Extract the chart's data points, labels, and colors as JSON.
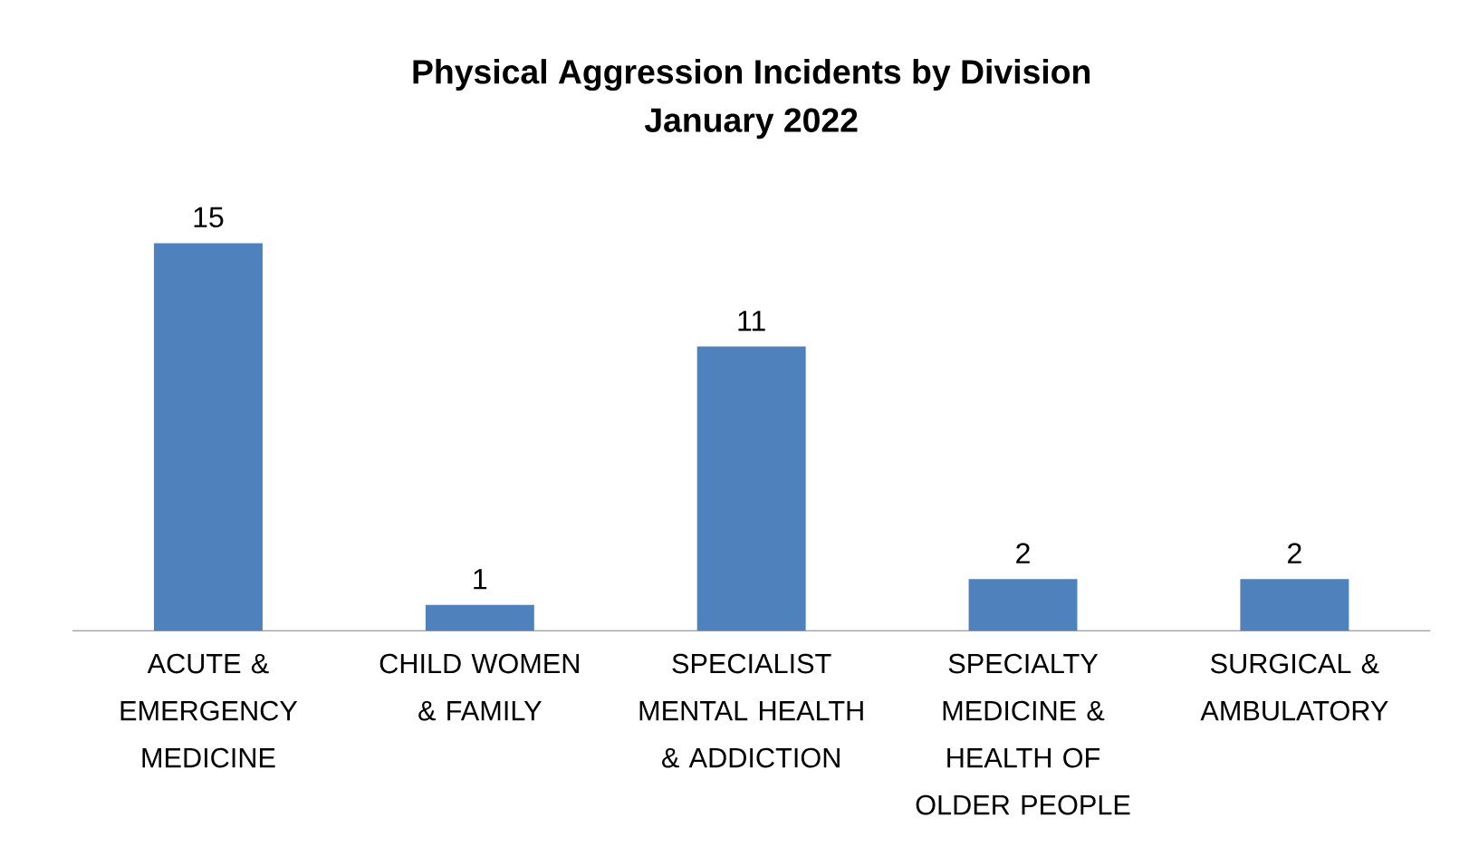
{
  "chart_data": {
    "type": "bar",
    "title": "Physical Aggression Incidents by Division",
    "subtitle": "January 2022",
    "categories": [
      "ACUTE & EMERGENCY MEDICINE",
      "CHILD WOMEN & FAMILY",
      "SPECIALIST MENTAL HEALTH & ADDICTION",
      "SPECIALTY MEDICINE & HEALTH OF OLDER PEOPLE",
      "SURGICAL & AMBULATORY"
    ],
    "values": [
      15,
      1,
      11,
      2,
      2
    ],
    "color": "#4f81bd",
    "data_labels": true
  }
}
